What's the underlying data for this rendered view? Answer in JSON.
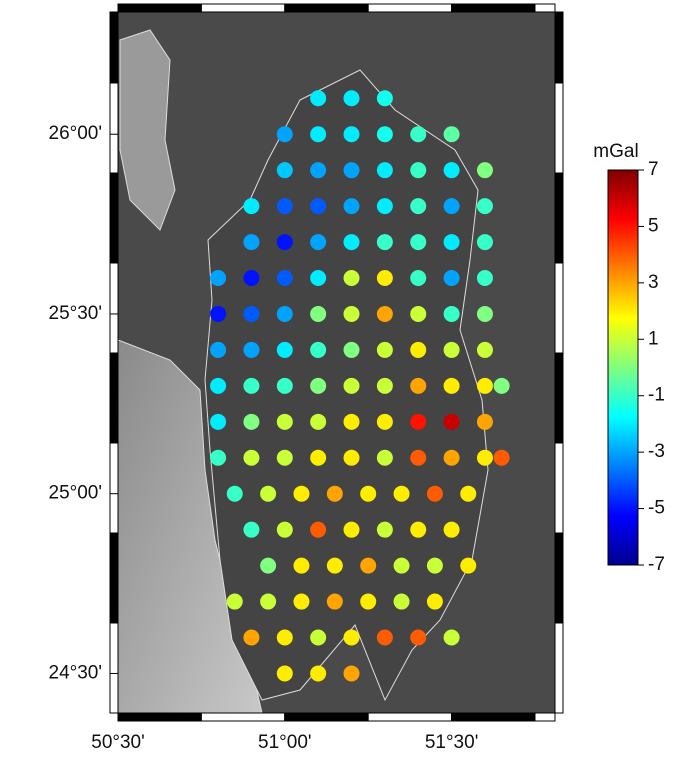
{
  "chart_data": {
    "type": "scatter",
    "xlim": [
      50.5,
      51.81
    ],
    "ylim": [
      24.39,
      26.34
    ],
    "xticks": [
      {
        "value": 50.5,
        "label": "50°30'"
      },
      {
        "value": 51.0,
        "label": "51°00'"
      },
      {
        "value": 51.5,
        "label": "51°30'"
      }
    ],
    "yticks": [
      {
        "value": 24.5,
        "label": "24°30'"
      },
      {
        "value": 25.0,
        "label": "25°00'"
      },
      {
        "value": 25.5,
        "label": "25°30'"
      },
      {
        "value": 26.0,
        "label": "26°00'"
      }
    ],
    "colorbar": {
      "label": "mGal",
      "clim": [
        -7,
        7
      ],
      "ticks": [
        7,
        5,
        3,
        1,
        -1,
        -3,
        -5,
        -7
      ]
    },
    "series": [
      {
        "x": [
          51.1,
          51.2,
          51.3,
          51.0,
          51.1,
          51.2,
          51.3,
          51.4,
          51.5,
          51.0,
          51.1,
          51.2,
          51.3,
          51.4,
          51.5,
          51.6,
          50.9,
          51.0,
          51.1,
          51.2,
          51.3,
          51.4,
          51.5,
          51.6,
          50.9,
          51.0,
          51.1,
          51.2,
          51.3,
          51.4,
          51.5,
          51.6,
          50.8,
          50.9,
          51.0,
          51.1,
          51.2,
          51.3,
          51.4,
          51.5,
          51.6,
          50.8,
          50.9,
          51.0,
          51.1,
          51.2,
          51.3,
          51.4,
          51.5,
          51.6,
          50.8,
          50.9,
          51.0,
          51.1,
          51.2,
          51.3,
          51.4,
          51.5,
          51.6,
          50.8,
          50.9,
          51.0,
          51.1,
          51.2,
          51.3,
          51.4,
          51.5,
          51.6,
          51.65,
          50.8,
          50.9,
          51.0,
          51.1,
          51.2,
          51.3,
          51.4,
          51.5,
          51.6,
          50.8,
          50.9,
          51.0,
          51.1,
          51.2,
          51.3,
          51.4,
          51.5,
          51.6,
          51.65,
          50.85,
          50.95,
          51.05,
          51.15,
          51.25,
          51.35,
          51.45,
          51.55,
          50.9,
          51.0,
          51.1,
          51.2,
          51.3,
          51.4,
          51.5,
          50.95,
          51.05,
          51.15,
          51.25,
          51.35,
          51.45,
          51.55,
          50.85,
          50.95,
          51.05,
          51.15,
          51.25,
          51.35,
          51.45,
          50.9,
          51.0,
          51.1,
          51.2,
          51.3,
          51.4,
          51.5,
          51.0,
          51.1,
          51.2
        ],
        "y": [
          26.1,
          26.1,
          26.1,
          26.0,
          26.0,
          26.0,
          26.0,
          26.0,
          26.0,
          25.9,
          25.9,
          25.9,
          25.9,
          25.9,
          25.9,
          25.9,
          25.8,
          25.8,
          25.8,
          25.8,
          25.8,
          25.8,
          25.8,
          25.8,
          25.7,
          25.7,
          25.7,
          25.7,
          25.7,
          25.7,
          25.7,
          25.7,
          25.6,
          25.6,
          25.6,
          25.6,
          25.6,
          25.6,
          25.6,
          25.6,
          25.6,
          25.5,
          25.5,
          25.5,
          25.5,
          25.5,
          25.5,
          25.5,
          25.5,
          25.5,
          25.4,
          25.4,
          25.4,
          25.4,
          25.4,
          25.4,
          25.4,
          25.4,
          25.4,
          25.3,
          25.3,
          25.3,
          25.3,
          25.3,
          25.3,
          25.3,
          25.3,
          25.3,
          25.3,
          25.2,
          25.2,
          25.2,
          25.2,
          25.2,
          25.2,
          25.2,
          25.2,
          25.2,
          25.1,
          25.1,
          25.1,
          25.1,
          25.1,
          25.1,
          25.1,
          25.1,
          25.1,
          25.1,
          25.0,
          25.0,
          25.0,
          25.0,
          25.0,
          25.0,
          25.0,
          25.0,
          24.9,
          24.9,
          24.9,
          24.9,
          24.9,
          24.9,
          24.9,
          24.8,
          24.8,
          24.8,
          24.8,
          24.8,
          24.8,
          24.8,
          24.7,
          24.7,
          24.7,
          24.7,
          24.7,
          24.7,
          24.7,
          24.6,
          24.6,
          24.6,
          24.6,
          24.6,
          24.6,
          24.6,
          24.5,
          24.5,
          24.5
        ],
        "values": [
          -2,
          -2,
          -1.5,
          -3,
          -2,
          -2,
          -1.5,
          -1,
          -0.5,
          -2.5,
          -3,
          -3,
          -2,
          -1,
          -2,
          0,
          -2,
          -4,
          -4,
          -3,
          -2,
          -1,
          -3,
          -1,
          -3,
          -5,
          -3,
          -2,
          -1,
          -1,
          -2,
          -1,
          -3,
          -5,
          -4,
          -2,
          1,
          2,
          -1,
          -3,
          -1,
          -5,
          -4,
          -3,
          0,
          1,
          3,
          1,
          -1,
          0,
          -3,
          -3,
          -2,
          -1,
          0,
          1,
          2,
          1,
          1,
          -2,
          -1,
          -1,
          0,
          1,
          1,
          3,
          2,
          2,
          0,
          -2,
          0,
          1,
          1,
          2,
          2,
          5,
          6,
          3,
          -1,
          1,
          1,
          2,
          2,
          1,
          4,
          3,
          2,
          4,
          -1,
          1,
          2,
          3,
          2,
          2,
          4,
          2,
          -1,
          1,
          4,
          2,
          1,
          2,
          2,
          0,
          2,
          2,
          3,
          1,
          1,
          2,
          1,
          1,
          2,
          3,
          2,
          1,
          2,
          3,
          2,
          1,
          2,
          4,
          4,
          1,
          2,
          2,
          3
        ]
      }
    ]
  }
}
